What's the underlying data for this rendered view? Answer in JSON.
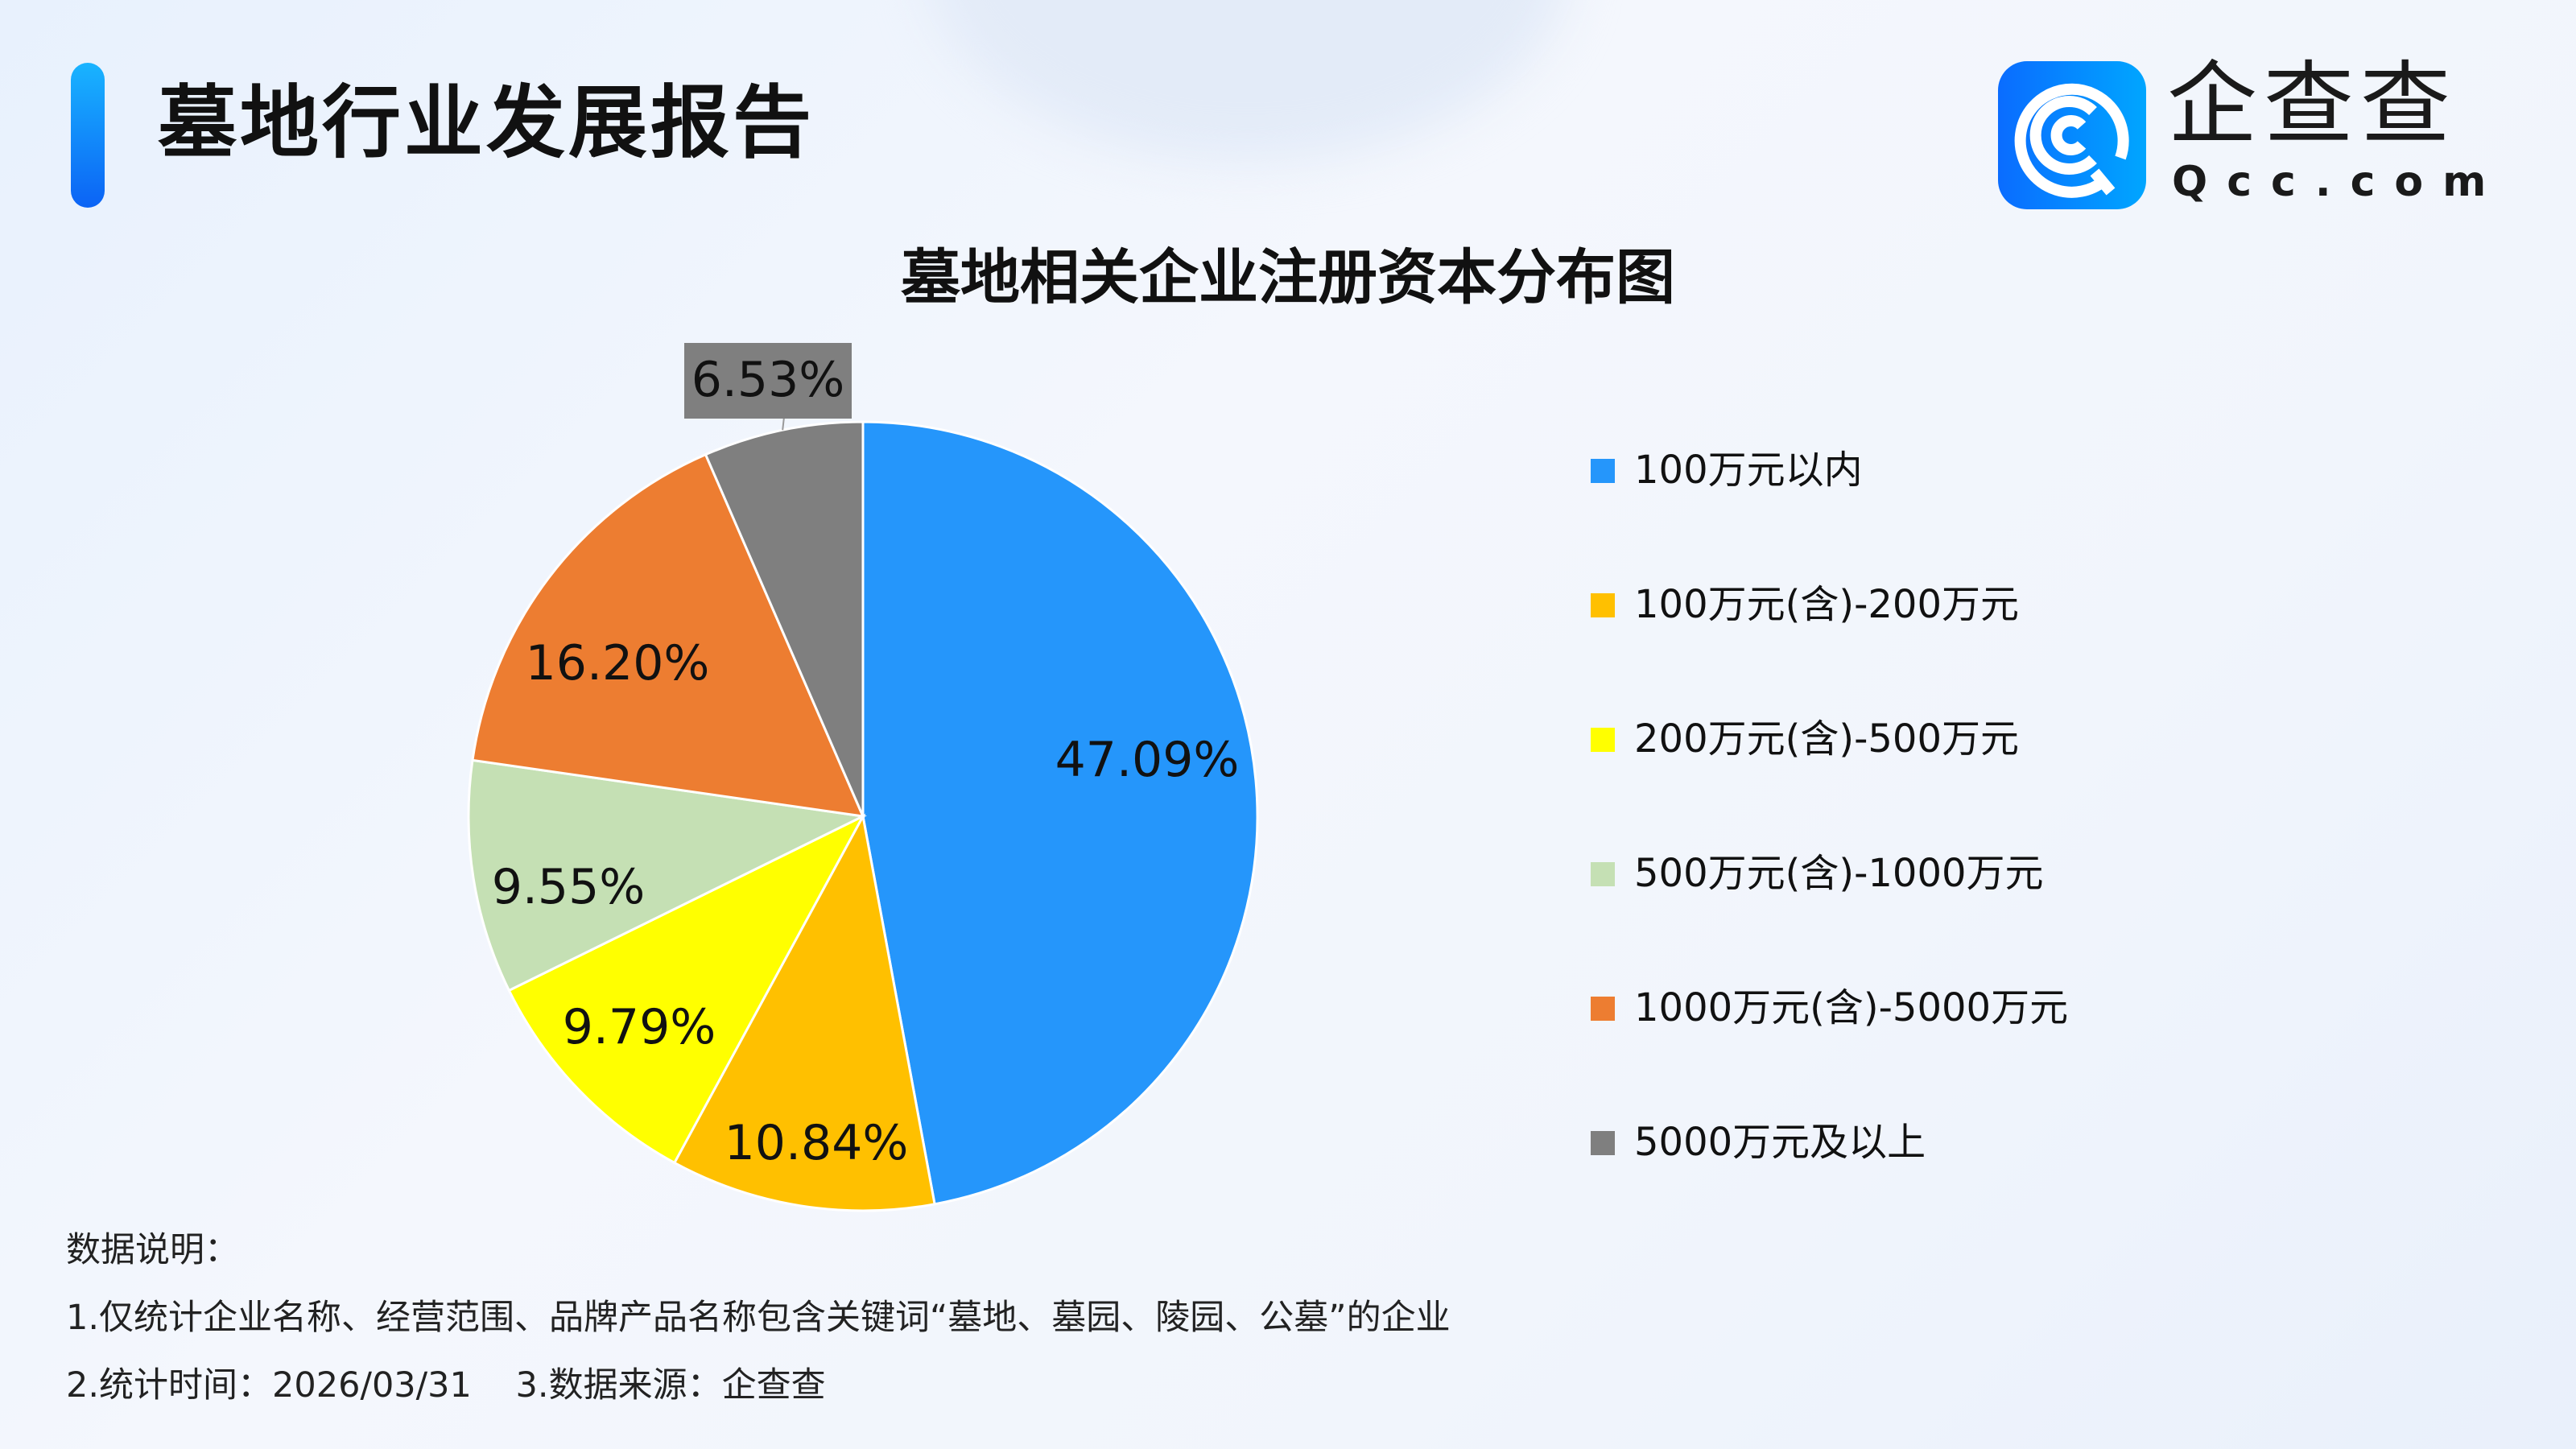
{
  "header": {
    "title": "墓地行业发展报告",
    "logo_text": "企查查",
    "logo_domain": "Qcc.com"
  },
  "chart_data": {
    "type": "pie",
    "title": "墓地相关企业注册资本分布图",
    "legend_position": "right",
    "categories": [
      "100万元以内",
      "100万元(含)-200万元",
      "200万元(含)-500万元",
      "500万元(含)-1000万元",
      "1000万元(含)-5000万元",
      "5000万元及以上"
    ],
    "values": [
      47.09,
      10.84,
      9.79,
      9.55,
      16.2,
      6.53
    ],
    "labels": [
      "47.09%",
      "10.84%",
      "9.79%",
      "9.55%",
      "16.20%",
      "6.53%"
    ],
    "colors": [
      "#2596fb",
      "#ffc000",
      "#ffff00",
      "#c5e0b4",
      "#ed7d31",
      "#7f7f7f"
    ]
  },
  "footer": {
    "heading": "数据说明：",
    "line1": "1.仅统计企业名称、经营范围、品牌产品名称包含关键词“墓地、墓园、陵园、公墓”的企业",
    "line2": "2.统计时间：2026/03/31    3.数据来源：企查查"
  }
}
